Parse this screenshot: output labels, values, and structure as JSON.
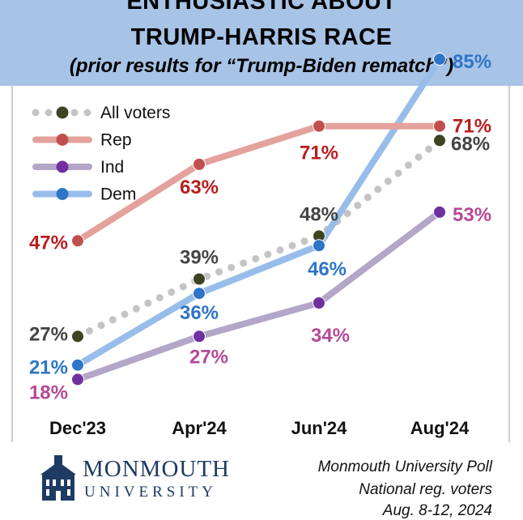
{
  "header": {
    "title_line1": "ENTHUSIASTIC ABOUT",
    "title_line2": "TRUMP-HARRIS RACE",
    "subtitle": "(prior results for “Trump-Biden rematch”)"
  },
  "chart_data": {
    "type": "line",
    "categories": [
      "Dec'23",
      "Apr'24",
      "Jun'24",
      "Aug'24"
    ],
    "ylim": [
      0,
      100
    ],
    "grid": false,
    "legend_position": "top-left",
    "series": [
      {
        "name": "All voters",
        "values": [
          27,
          39,
          48,
          68
        ],
        "labels": [
          "27%",
          "39%",
          "48%",
          "68%"
        ],
        "line_color": "#c4c4c4",
        "marker_color": "#3d4422",
        "label_color": "#444444",
        "dashed": true
      },
      {
        "name": "Rep",
        "values": [
          47,
          63,
          71,
          71
        ],
        "labels": [
          "47%",
          "63%",
          "71%",
          "71%"
        ],
        "line_color": "#e4a29c",
        "marker_color": "#c0504d",
        "label_color": "#b81e1e",
        "dashed": false
      },
      {
        "name": "Ind",
        "values": [
          18,
          27,
          34,
          53
        ],
        "labels": [
          "18%",
          "27%",
          "34%",
          "53%"
        ],
        "line_color": "#b3a6c8",
        "marker_color": "#7030a0",
        "label_color": "#b54a96",
        "dashed": false
      },
      {
        "name": "Dem",
        "values": [
          21,
          36,
          46,
          85
        ],
        "labels": [
          "21%",
          "36%",
          "46%",
          "85%"
        ],
        "line_color": "#98bdeb",
        "marker_color": "#2e75c8",
        "label_color": "#2e75c8",
        "dashed": false
      }
    ]
  },
  "footer": {
    "logo_name": "MONMOUTH",
    "logo_sub": "UNIVERSITY",
    "source_line1": "Monmouth University Poll",
    "source_line2": "National reg. voters",
    "source_line3": "Aug. 8-12, 2024"
  }
}
